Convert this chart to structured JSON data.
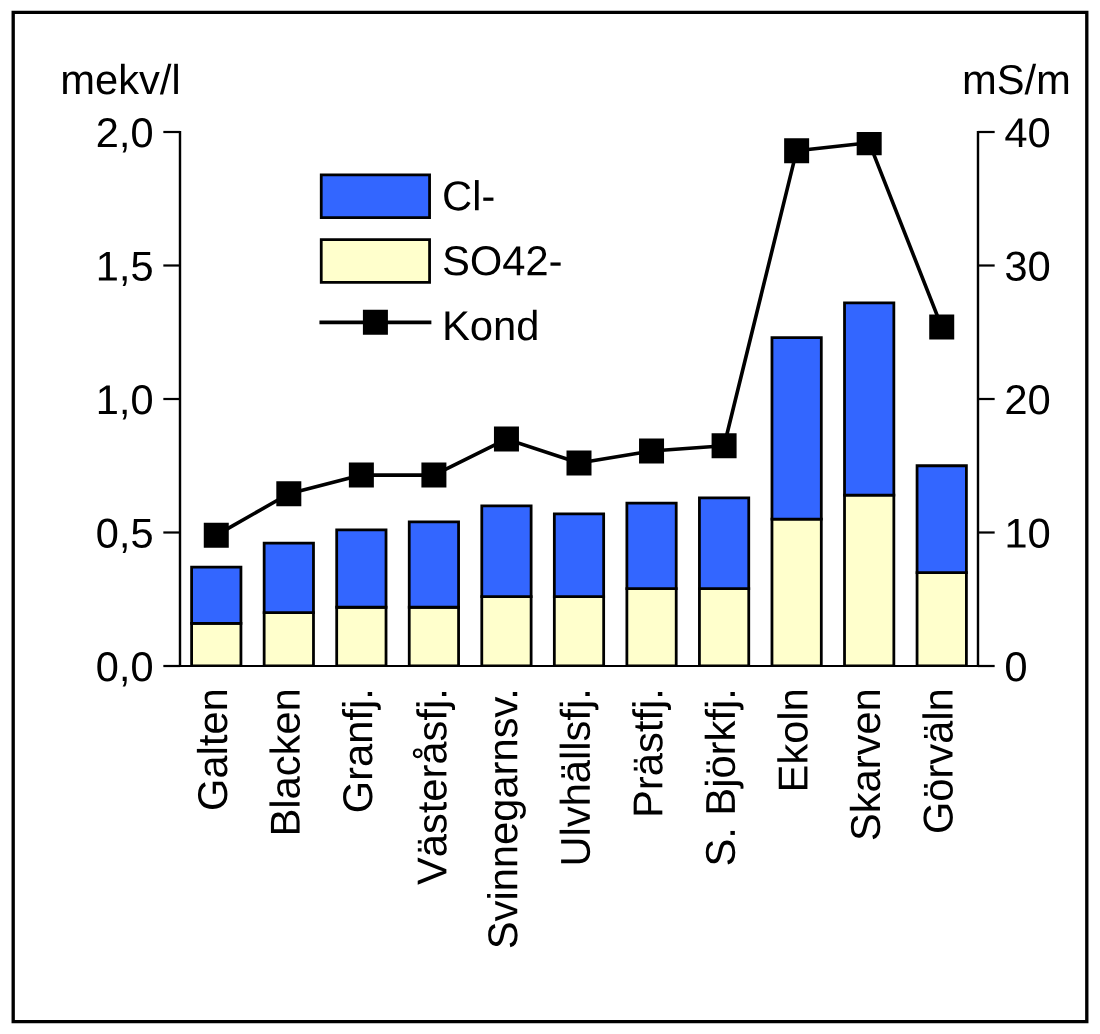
{
  "chart_data": {
    "type": "bar",
    "stacked": true,
    "ylabel": "mekv/l",
    "y2label": "mS/m",
    "categories": [
      "Galten",
      "Blacken",
      "Granfj.",
      "Västeråsfj.",
      "Svinnegarnsv.",
      "Ulvhällsfj.",
      "Prästfj.",
      "S. Björkfj.",
      "Ekoln",
      "Skarven",
      "Görväln"
    ],
    "series": [
      {
        "name": "SO42-",
        "color": "#ffffcc",
        "values": [
          0.16,
          0.2,
          0.22,
          0.22,
          0.26,
          0.26,
          0.29,
          0.29,
          0.55,
          0.64,
          0.35
        ]
      },
      {
        "name": "Cl-",
        "color": "#3366ff",
        "values": [
          0.21,
          0.26,
          0.29,
          0.32,
          0.34,
          0.31,
          0.32,
          0.34,
          0.68,
          0.72,
          0.4
        ]
      },
      {
        "name": "Kond",
        "type": "line",
        "axis": "y2",
        "color": "#000000",
        "marker": "square",
        "values": [
          9.8,
          12.9,
          14.3,
          14.3,
          17.0,
          15.2,
          16.1,
          16.5,
          38.6,
          39.2,
          25.4
        ]
      }
    ],
    "ylim": [
      0,
      2.0
    ],
    "yticks": [
      {
        "value": 0,
        "label": "0,0"
      },
      {
        "value": 0.5,
        "label": "0,5"
      },
      {
        "value": 1.0,
        "label": "1,0"
      },
      {
        "value": 1.5,
        "label": "1,5"
      },
      {
        "value": 2.0,
        "label": "2,0"
      }
    ],
    "y2lim": [
      0,
      40
    ],
    "y2ticks": [
      0,
      10,
      20,
      30,
      40
    ],
    "grid": false,
    "legend": "top left"
  }
}
